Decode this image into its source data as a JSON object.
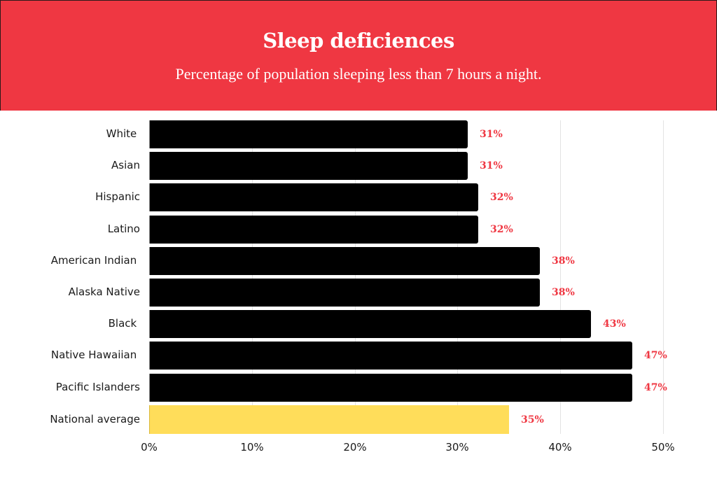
{
  "header": {
    "title": "Sleep deficiences",
    "subtitle": "Percentage of population sleeping less than 7 hours a night."
  },
  "colors": {
    "header_bg": "#ef3742",
    "bar": "#000000",
    "highlight_bar": "#ffdd5a",
    "value_label": "#ef3742",
    "gridline": "#e3e3e3"
  },
  "chart_data": {
    "type": "bar",
    "orientation": "horizontal",
    "title": "Sleep deficiences",
    "subtitle": "Percentage of population sleeping less than 7 hours a night.",
    "categories": [
      "White",
      "Asian",
      "Hispanic",
      "Latino",
      "American Indian",
      "Alaska Native",
      "Black",
      "Native Hawaiian",
      "Pacific Islanders",
      "National average"
    ],
    "values": [
      31,
      31,
      32,
      32,
      38,
      38,
      43,
      47,
      47,
      35
    ],
    "value_labels": [
      "31%",
      "31%",
      "32%",
      "32%",
      "38%",
      "38%",
      "43%",
      "47%",
      "47%",
      "35%"
    ],
    "highlight": "National average",
    "xlabel": "",
    "ylabel": "",
    "xlim": [
      0,
      50
    ],
    "x_ticks": [
      "0%",
      "10%",
      "20%",
      "30%",
      "40%",
      "50%"
    ],
    "grid": true,
    "legend": null
  }
}
